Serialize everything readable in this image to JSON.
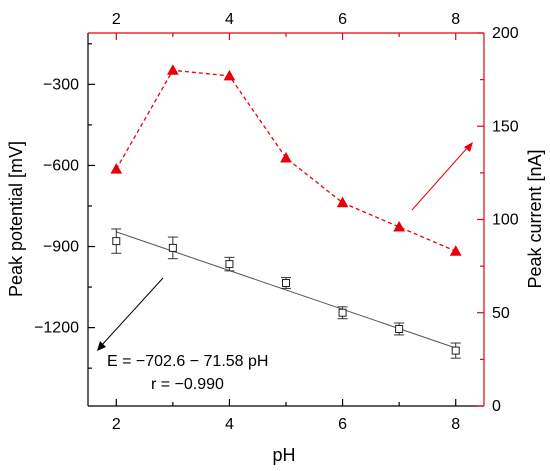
{
  "chart_data": {
    "type": "scatter",
    "xlabel": "pH",
    "x_ticks": [
      "2",
      "4",
      "6",
      "8"
    ],
    "xlim": [
      1.5,
      8.5
    ],
    "y_left": {
      "label": "Peak potential [mV]",
      "lim": [
        -1490,
        -110
      ],
      "ticks": [
        -300,
        -600,
        -900,
        -1200
      ],
      "tick_labels": [
        "−300",
        "−600",
        "−900",
        "−1200"
      ]
    },
    "y_right": {
      "label": "Peak current [nA]",
      "lim": [
        0,
        200
      ],
      "ticks": [
        0,
        50,
        100,
        150,
        200
      ],
      "tick_labels": [
        "0",
        "50",
        "100",
        "150",
        "200"
      ],
      "color": "#e8000b"
    },
    "series": [
      {
        "axis": "left",
        "marker": "open-square",
        "color": "#222222",
        "x": [
          2,
          3,
          4,
          5,
          6,
          7,
          8
        ],
        "y": [
          -880,
          -905,
          -965,
          -1035,
          -1145,
          -1205,
          -1285
        ],
        "yerr": [
          45,
          40,
          25,
          20,
          22,
          22,
          28
        ]
      },
      {
        "axis": "right",
        "marker": "filled-triangle",
        "color": "#e8000b",
        "style": "dashed",
        "x": [
          2,
          3,
          4,
          5,
          6,
          7,
          8
        ],
        "y": [
          127,
          180,
          177,
          133,
          109,
          96,
          83
        ]
      }
    ],
    "fit": {
      "x": [
        2,
        8
      ],
      "y": [
        -845.8,
        -1275.3
      ],
      "equation": "E = −702.6 − 71.58 pH",
      "r": "r = −0.990"
    },
    "grid": false
  },
  "colors": {
    "left_axis": "#000000",
    "right_axis": "#e8000b"
  }
}
